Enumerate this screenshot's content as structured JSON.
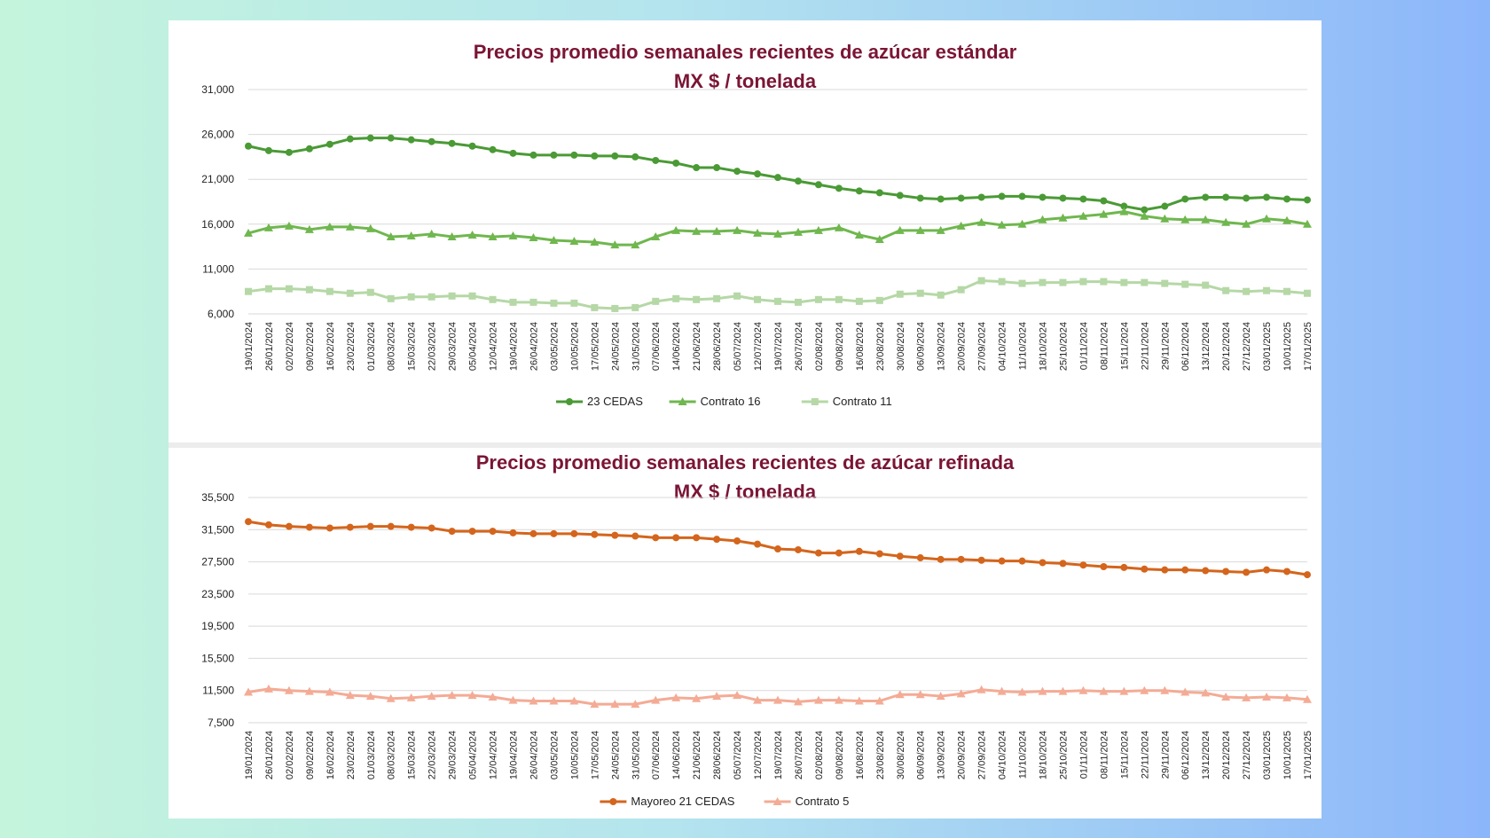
{
  "colors": {
    "title": "#7b1535",
    "grid": "#d9d9d9",
    "axis_text": "#222222"
  },
  "chart_data": [
    {
      "type": "line",
      "title": "Precios promedio semanales recientes de azúcar estándar",
      "subtitle": "MX $ / tonelada",
      "xlabel": "",
      "ylabel": "",
      "ylim": [
        6000,
        31000
      ],
      "yticks": [
        6000,
        11000,
        16000,
        21000,
        26000,
        31000
      ],
      "ytick_labels": [
        "6,000",
        "11,000",
        "16,000",
        "21,000",
        "26,000",
        "31,000"
      ],
      "grid": true,
      "legend": "bottom",
      "categories": [
        "19/01/2024",
        "26/01/2024",
        "02/02/2024",
        "09/02/2024",
        "16/02/2024",
        "23/02/2024",
        "01/03/2024",
        "08/03/2024",
        "15/03/2024",
        "22/03/2024",
        "29/03/2024",
        "05/04/2024",
        "12/04/2024",
        "19/04/2024",
        "26/04/2024",
        "03/05/2024",
        "10/05/2024",
        "17/05/2024",
        "24/05/2024",
        "31/05/2024",
        "07/06/2024",
        "14/06/2024",
        "21/06/2024",
        "28/06/2024",
        "05/07/2024",
        "12/07/2024",
        "19/07/2024",
        "26/07/2024",
        "02/08/2024",
        "09/08/2024",
        "16/08/2024",
        "23/08/2024",
        "30/08/2024",
        "06/09/2024",
        "13/09/2024",
        "20/09/2024",
        "27/09/2024",
        "04/10/2024",
        "11/10/2024",
        "18/10/2024",
        "25/10/2024",
        "01/11/2024",
        "08/11/2024",
        "15/11/2024",
        "22/11/2024",
        "29/11/2024",
        "06/12/2024",
        "13/12/2024",
        "20/12/2024",
        "27/12/2024",
        "03/01/2025",
        "10/01/2025",
        "17/01/2025"
      ],
      "series": [
        {
          "name": "23 CEDAS",
          "color": "#4a9a35",
          "marker": "circle",
          "values": [
            24700,
            24200,
            24000,
            24400,
            24900,
            25500,
            25600,
            25600,
            25400,
            25200,
            25000,
            24700,
            24300,
            23900,
            23700,
            23700,
            23700,
            23600,
            23600,
            23500,
            23100,
            22800,
            22300,
            22300,
            21900,
            21600,
            21200,
            20800,
            20400,
            20000,
            19700,
            19500,
            19200,
            18900,
            18800,
            18900,
            19000,
            19100,
            19100,
            19000,
            18900,
            18800,
            18600,
            18000,
            17600,
            18000,
            18800,
            19000,
            19000,
            18900,
            19000,
            18800,
            18700
          ]
        },
        {
          "name": "Contrato 16",
          "color": "#6fb74e",
          "marker": "triangle",
          "values": [
            15000,
            15600,
            15800,
            15400,
            15700,
            15700,
            15500,
            14600,
            14700,
            14900,
            14600,
            14800,
            14600,
            14700,
            14500,
            14200,
            14100,
            14000,
            13700,
            13700,
            14600,
            15300,
            15200,
            15200,
            15300,
            15000,
            14900,
            15100,
            15300,
            15600,
            14800,
            14300,
            15300,
            15300,
            15300,
            15800,
            16200,
            15900,
            16000,
            16500,
            16700,
            16900,
            17100,
            17400,
            16900,
            16600,
            16500,
            16500,
            16200,
            16000,
            16600,
            16400,
            16000
          ]
        },
        {
          "name": "Contrato 11",
          "color": "#b5d8a6",
          "marker": "square",
          "values": [
            8500,
            8800,
            8800,
            8700,
            8500,
            8300,
            8400,
            7700,
            7900,
            7900,
            8000,
            8000,
            7600,
            7300,
            7300,
            7200,
            7200,
            6700,
            6600,
            6700,
            7400,
            7700,
            7600,
            7700,
            8000,
            7600,
            7400,
            7300,
            7600,
            7600,
            7400,
            7500,
            8200,
            8300,
            8100,
            8700,
            9700,
            9600,
            9400,
            9500,
            9500,
            9600,
            9600,
            9500,
            9500,
            9400,
            9300,
            9200,
            8600,
            8500,
            8600,
            8500,
            8300
          ]
        }
      ]
    },
    {
      "type": "line",
      "title": "Precios promedio semanales recientes de azúcar refinada",
      "subtitle": "MX $ / tonelada",
      "xlabel": "",
      "ylabel": "",
      "ylim": [
        7500,
        35500
      ],
      "yticks": [
        7500,
        11500,
        15500,
        19500,
        23500,
        27500,
        31500,
        35500
      ],
      "ytick_labels": [
        "7,500",
        "11,500",
        "15,500",
        "19,500",
        "23,500",
        "27,500",
        "31,500",
        "35,500"
      ],
      "grid": true,
      "legend": "bottom",
      "categories": [
        "19/01/2024",
        "26/01/2024",
        "02/02/2024",
        "09/02/2024",
        "16/02/2024",
        "23/02/2024",
        "01/03/2024",
        "08/03/2024",
        "15/03/2024",
        "22/03/2024",
        "29/03/2024",
        "05/04/2024",
        "12/04/2024",
        "19/04/2024",
        "26/04/2024",
        "03/05/2024",
        "10/05/2024",
        "17/05/2024",
        "24/05/2024",
        "31/05/2024",
        "07/06/2024",
        "14/06/2024",
        "21/06/2024",
        "28/06/2024",
        "05/07/2024",
        "12/07/2024",
        "19/07/2024",
        "26/07/2024",
        "02/08/2024",
        "09/08/2024",
        "16/08/2024",
        "23/08/2024",
        "30/08/2024",
        "06/09/2024",
        "13/09/2024",
        "20/09/2024",
        "27/09/2024",
        "04/10/2024",
        "11/10/2024",
        "18/10/2024",
        "25/10/2024",
        "01/11/2024",
        "08/11/2024",
        "15/11/2024",
        "22/11/2024",
        "29/11/2024",
        "06/12/2024",
        "13/12/2024",
        "20/12/2024",
        "27/12/2024",
        "03/01/2025",
        "10/01/2025",
        "17/01/2025"
      ],
      "series": [
        {
          "name": "Mayoreo 21 CEDAS",
          "color": "#d4651c",
          "marker": "circle",
          "values": [
            32500,
            32100,
            31900,
            31800,
            31700,
            31800,
            31900,
            31900,
            31800,
            31700,
            31300,
            31300,
            31300,
            31100,
            31000,
            31000,
            31000,
            30900,
            30800,
            30700,
            30500,
            30500,
            30500,
            30300,
            30100,
            29700,
            29100,
            29000,
            28600,
            28600,
            28800,
            28500,
            28200,
            28000,
            27800,
            27800,
            27700,
            27600,
            27600,
            27400,
            27300,
            27100,
            26900,
            26800,
            26600,
            26500,
            26500,
            26400,
            26300,
            26200,
            26500,
            26300,
            25900
          ]
        },
        {
          "name": "Contrato 5",
          "color": "#f4ab95",
          "marker": "triangle",
          "values": [
            11300,
            11700,
            11500,
            11400,
            11300,
            10900,
            10800,
            10500,
            10600,
            10800,
            10900,
            10900,
            10700,
            10300,
            10200,
            10200,
            10200,
            9800,
            9800,
            9800,
            10300,
            10600,
            10500,
            10800,
            10900,
            10300,
            10300,
            10100,
            10300,
            10300,
            10200,
            10200,
            11000,
            11000,
            10800,
            11100,
            11600,
            11400,
            11300,
            11400,
            11400,
            11500,
            11400,
            11400,
            11500,
            11500,
            11300,
            11200,
            10700,
            10600,
            10700,
            10600,
            10400
          ]
        }
      ]
    }
  ]
}
